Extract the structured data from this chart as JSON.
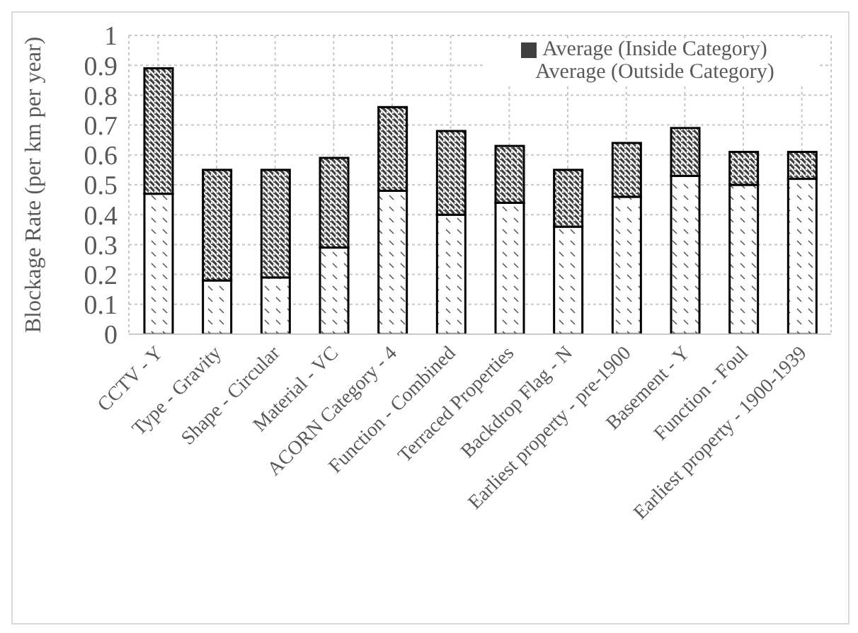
{
  "chart_data": {
    "type": "bar",
    "stacked": true,
    "ylabel": "Blockage Rate (per km per year)",
    "categories": [
      "CCTV - Y",
      "Type - Gravity",
      "Shape - Circular",
      "Material - VC",
      "ACORN Category - 4",
      "Function - Combined",
      "Terraced Properties",
      "Backdrop Flag - N",
      "Earliest property - pre-1900",
      "Basement - Y",
      "Function - Foul",
      "Earliest property - 1900-1939"
    ],
    "series": [
      {
        "name": "Average (Outside Category)",
        "color": "#ffffff",
        "values": [
          0.47,
          0.18,
          0.19,
          0.29,
          0.48,
          0.4,
          0.44,
          0.36,
          0.46,
          0.53,
          0.5,
          0.52
        ]
      },
      {
        "name": "Average (Inside Category)",
        "color": "#404040",
        "values": [
          0.42,
          0.37,
          0.36,
          0.3,
          0.28,
          0.28,
          0.19,
          0.19,
          0.18,
          0.16,
          0.11,
          0.09
        ]
      }
    ],
    "ylim": [
      0,
      1
    ],
    "yticks": [
      0,
      0.1,
      0.2,
      0.3,
      0.4,
      0.5,
      0.6,
      0.7,
      0.8,
      0.9,
      1
    ],
    "grid": true,
    "legend": "top right"
  }
}
